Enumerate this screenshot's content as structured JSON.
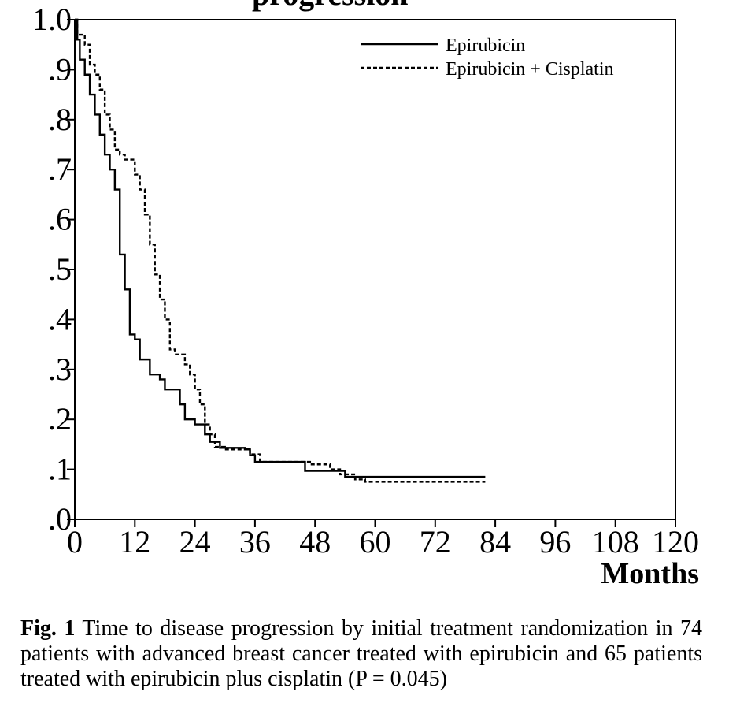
{
  "top_partial_text": "progression",
  "chart_data": {
    "type": "line",
    "xlabel": "Months",
    "ylabel": "",
    "xlim": [
      0,
      120
    ],
    "ylim": [
      0,
      1.0
    ],
    "x_ticks": [
      0,
      12,
      24,
      36,
      48,
      60,
      72,
      84,
      96,
      108,
      120
    ],
    "x_tick_labels": [
      "0",
      "12",
      "24",
      "36",
      "48",
      "60",
      "72",
      "84",
      "96",
      "108",
      "120"
    ],
    "y_ticks": [
      0,
      0.1,
      0.2,
      0.3,
      0.4,
      0.5,
      0.6,
      0.7,
      0.8,
      0.9,
      1.0
    ],
    "y_tick_labels": [
      ".0",
      ".1",
      ".2",
      ".3",
      ".4",
      ".5",
      ".6",
      ".7",
      ".8",
      ".9",
      "1.0"
    ],
    "grid": false,
    "legend_position": "top-right",
    "series": [
      {
        "name": "Epirubicin",
        "style": "solid",
        "color": "#000000",
        "x": [
          0,
          0.5,
          1,
          2,
          3,
          4,
          5,
          6,
          7,
          8,
          9,
          10,
          11,
          12,
          13,
          15,
          17,
          18,
          20,
          21,
          22,
          24,
          26,
          27,
          29,
          34,
          35,
          36,
          46,
          54,
          56,
          82
        ],
        "y": [
          1.0,
          0.96,
          0.92,
          0.89,
          0.85,
          0.81,
          0.77,
          0.73,
          0.7,
          0.66,
          0.53,
          0.46,
          0.37,
          0.36,
          0.32,
          0.29,
          0.28,
          0.26,
          0.26,
          0.23,
          0.2,
          0.19,
          0.17,
          0.155,
          0.143,
          0.14,
          0.128,
          0.115,
          0.097,
          0.085,
          0.085,
          0.085
        ]
      },
      {
        "name": "Epirubicin + Cisplatin",
        "style": "dashed",
        "color": "#000000",
        "x": [
          0,
          0.5,
          2,
          3,
          4,
          5,
          6,
          7,
          8,
          9,
          10,
          12,
          13,
          14,
          15,
          16,
          17,
          18,
          19,
          20,
          22,
          23,
          24,
          25,
          26,
          27,
          28,
          30,
          35,
          37,
          47,
          51,
          53,
          56,
          58,
          82
        ],
        "y": [
          1.0,
          0.97,
          0.95,
          0.91,
          0.89,
          0.86,
          0.81,
          0.78,
          0.74,
          0.73,
          0.72,
          0.69,
          0.66,
          0.61,
          0.55,
          0.49,
          0.44,
          0.4,
          0.34,
          0.33,
          0.31,
          0.29,
          0.26,
          0.23,
          0.19,
          0.17,
          0.145,
          0.14,
          0.13,
          0.115,
          0.11,
          0.1,
          0.09,
          0.08,
          0.075,
          0.075
        ]
      }
    ]
  },
  "caption": {
    "label": "Fig. 1",
    "text": "Time to disease progression by initial treatment randomization in 74 patients with advanced breast cancer treated with epirubicin and 65 patients treated with epirubicin plus cisplatin (P = 0.045)"
  }
}
